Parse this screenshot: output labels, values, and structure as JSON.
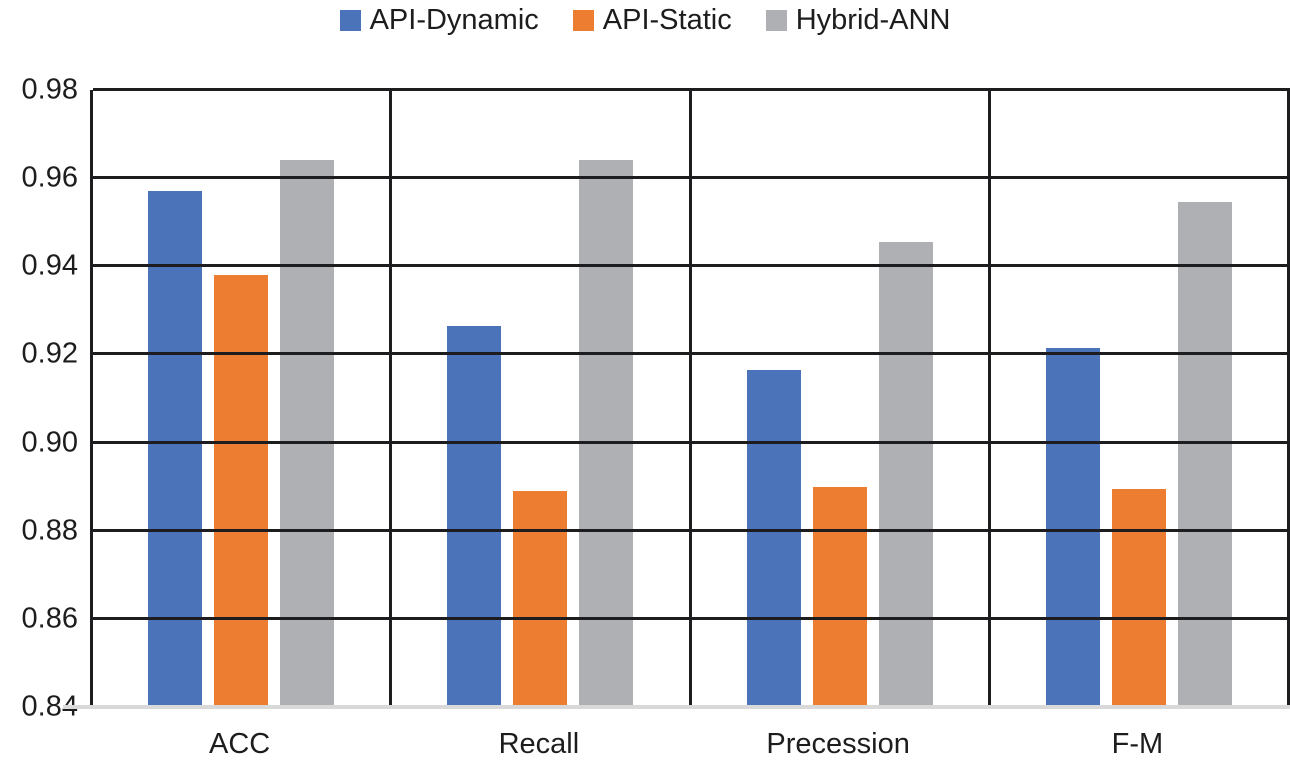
{
  "chart_data": {
    "type": "bar",
    "title": "",
    "xlabel": "",
    "ylabel": "",
    "categories": [
      "ACC",
      "Recall",
      "Precession",
      "F-M"
    ],
    "series": [
      {
        "name": "API-Dynamic",
        "color": "#4A73B9",
        "values": [
          0.9572,
          0.9265,
          0.9165,
          0.9215
        ]
      },
      {
        "name": "API-Static",
        "color": "#ED7D31",
        "values": [
          0.9381,
          0.8891,
          0.8899,
          0.8894
        ]
      },
      {
        "name": "Hybrid-ANN",
        "color": "#AFB0B3",
        "values": [
          0.9641,
          0.9641,
          0.9455,
          0.9546
        ]
      }
    ],
    "ylim": [
      0.84,
      0.98
    ],
    "ytick_step": 0.02,
    "ytick_labels": [
      "0.98",
      "0.96",
      "0.94",
      "0.92",
      "0.90",
      "0.88",
      "0.86",
      "0.84"
    ],
    "grid": "horizontal-black, vertical category separators",
    "legend_position": "top-center",
    "style": {
      "grid_color": "#1d1d1f",
      "baseline_color": "#d9d9d9",
      "text_color": "#1d1d1f",
      "background": "#ffffff"
    }
  }
}
